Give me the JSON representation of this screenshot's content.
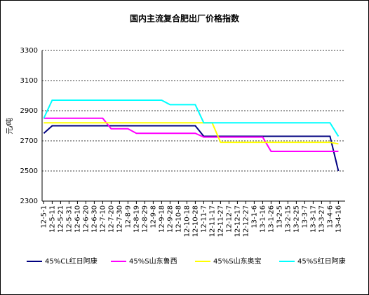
{
  "chart_data": {
    "type": "line",
    "title": "国内主流复合肥出厂价格指数",
    "y_label": "元/吨",
    "categories": [
      "12-5-1",
      "12-5-11",
      "12-5-21",
      "12-5-31",
      "12-6-10",
      "12-6-20",
      "12-6-30",
      "12-7-10",
      "12-7-20",
      "12-7-30",
      "12-8-9",
      "12-8-19",
      "12-8-29",
      "12-9-8",
      "12-9-18",
      "12-9-28",
      "12-10-8",
      "12-10-18",
      "12-10-28",
      "12-11-7",
      "12-11-17",
      "12-11-27",
      "12-12-7",
      "12-12-17",
      "12-12-27",
      "13-1-6",
      "13-1-16",
      "13-1-26",
      "13-2-5",
      "13-2-15",
      "13-2-25",
      "13-3-7",
      "13-3-17",
      "13-3-27",
      "13-4-6",
      "13-4-16"
    ],
    "series": [
      {
        "name": "45%CL红日阿康",
        "color": "#000080",
        "values": [
          2750,
          2800,
          2800,
          2800,
          2800,
          2800,
          2800,
          2800,
          2800,
          2800,
          2800,
          2800,
          2800,
          2800,
          2800,
          2800,
          2800,
          2800,
          2800,
          2730,
          2730,
          2730,
          2730,
          2730,
          2730,
          2730,
          2730,
          2730,
          2730,
          2730,
          2730,
          2730,
          2730,
          2730,
          2730,
          2500
        ]
      },
      {
        "name": "45%S山东鲁西",
        "color": "#FF00FF",
        "values": [
          2850,
          2850,
          2850,
          2850,
          2850,
          2850,
          2850,
          2850,
          2780,
          2780,
          2780,
          2750,
          2750,
          2750,
          2750,
          2750,
          2750,
          2750,
          2750,
          2725,
          2725,
          2725,
          2725,
          2725,
          2725,
          2725,
          2725,
          2630,
          2630,
          2630,
          2630,
          2630,
          2630,
          2630,
          2630,
          2630
        ]
      },
      {
        "name": "45%S山东奥宝",
        "color": "#FFFF00",
        "values": [
          2820,
          2820,
          2820,
          2820,
          2820,
          2820,
          2820,
          2820,
          2820,
          2820,
          2820,
          2820,
          2820,
          2820,
          2820,
          2820,
          2820,
          2820,
          2820,
          2820,
          2820,
          2690,
          2690,
          2690,
          2690,
          2690,
          2690,
          2690,
          2690,
          2690,
          2690,
          2690,
          2690,
          2690,
          2690,
          2680
        ]
      },
      {
        "name": "45%S红日阿康",
        "color": "#00FFFF",
        "values": [
          2850,
          2970,
          2970,
          2970,
          2970,
          2970,
          2970,
          2970,
          2970,
          2970,
          2970,
          2970,
          2970,
          2970,
          2970,
          2940,
          2940,
          2940,
          2940,
          2820,
          2820,
          2820,
          2820,
          2820,
          2820,
          2820,
          2820,
          2820,
          2820,
          2820,
          2820,
          2820,
          2820,
          2820,
          2820,
          2730
        ]
      }
    ],
    "ylim": [
      2300,
      3300
    ],
    "yticks": [
      2300,
      2500,
      2700,
      2900,
      3100,
      3300
    ],
    "grid": true,
    "legend": "bottom"
  }
}
